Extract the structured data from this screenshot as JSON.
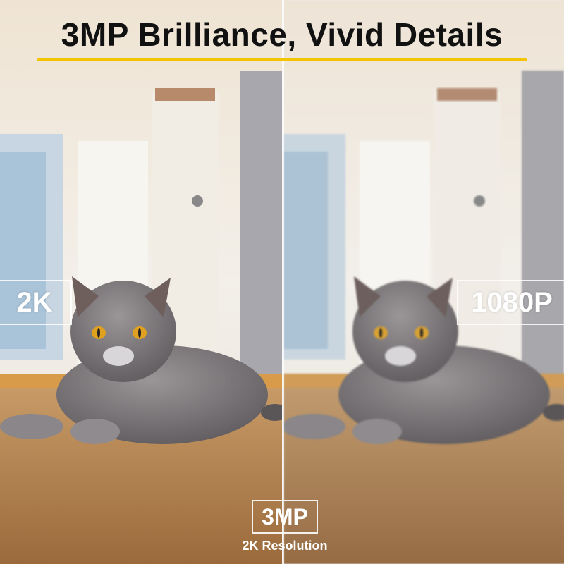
{
  "header": {
    "title": "3MP Brilliance, Vivid Details",
    "accent_color": "#f5c400"
  },
  "comparison": {
    "left_label": "2K",
    "right_label": "1080P"
  },
  "footer": {
    "badge": "3MP",
    "subtitle": "2K Resolution"
  }
}
